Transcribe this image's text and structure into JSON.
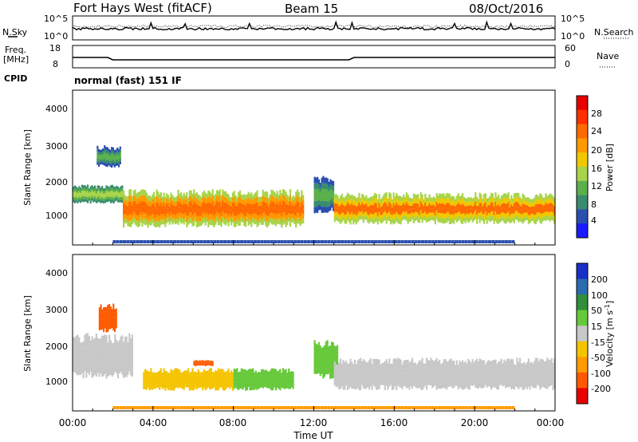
{
  "header": {
    "title": "Fort Hays West (fitACF)",
    "beam": "Beam 15",
    "date": "08/Oct/2016"
  },
  "noise_panel": {
    "left_label": "N.Sky",
    "right_label": "N.Search",
    "left_ticks": [
      "10^5",
      "10^0"
    ],
    "right_ticks": [
      "10^5",
      "10^0"
    ]
  },
  "freq_panel": {
    "left_label_1": "Freq.",
    "left_label_2": "[MHz]",
    "left_ticks": [
      "18",
      "8"
    ],
    "right_label": "Nave",
    "right_ticks": [
      "60",
      "0"
    ]
  },
  "cpid": {
    "label": "CPID",
    "text": "normal (fast) 151 IF"
  },
  "x_axis": {
    "label": "Time UT",
    "ticks": [
      "00:00",
      "04:00",
      "08:00",
      "12:00",
      "16:00",
      "20:00",
      "00:00"
    ]
  },
  "power_panel": {
    "ylabel": "Slant Range [km]",
    "yticks": [
      "4000",
      "3000",
      "2000",
      "1000"
    ],
    "colorbar_label": "Power [dB]",
    "colorbar_ticks": [
      "28",
      "24",
      "20",
      "16",
      "12",
      "8",
      "4"
    ],
    "colors": [
      "#1a1aff",
      "#2a4fb0",
      "#3a8c6e",
      "#5ab04a",
      "#a8d44a",
      "#f0c800",
      "#ff9a00",
      "#ff6a00",
      "#ff3000",
      "#e80000"
    ]
  },
  "velocity_panel": {
    "ylabel": "Slant Range [km]",
    "yticks": [
      "4000",
      "3000",
      "2000",
      "1000"
    ],
    "colorbar_label": "Velocity [m s",
    "colorbar_label_sup": "-1",
    "colorbar_label_end": "]",
    "colorbar_ticks": [
      "200",
      "100",
      "50",
      "15",
      "-15",
      "-50",
      "-100",
      "-200"
    ],
    "colors": [
      "#1a2fc8",
      "#2a6ab0",
      "#2f8f3a",
      "#66c93a",
      "#c8c8c8",
      "#f5c400",
      "#ff9a00",
      "#ff5a00",
      "#e80000"
    ]
  },
  "chart_data": {
    "type": "heatmap",
    "x_range": [
      "00:00",
      "24:00"
    ],
    "y_range_km": [
      180,
      4500
    ],
    "panels": [
      {
        "name": "Power [dB]",
        "scale": [
          0,
          30
        ],
        "features": [
          {
            "time_start_h": 0.0,
            "time_end_h": 2.5,
            "range_km": [
              1300,
              1900
            ],
            "power_db": 14
          },
          {
            "time_start_h": 1.2,
            "time_end_h": 2.4,
            "range_km": [
              2300,
              3000
            ],
            "power_db": 10
          },
          {
            "time_start_h": 2.5,
            "time_end_h": 11.5,
            "range_km": [
              600,
              1800
            ],
            "power_db": 24
          },
          {
            "time_start_h": 12.0,
            "time_end_h": 13.0,
            "range_km": [
              1000,
              2200
            ],
            "power_db": 10
          },
          {
            "time_start_h": 13.0,
            "time_end_h": 24.0,
            "range_km": [
              700,
              1700
            ],
            "power_db": 22
          }
        ]
      },
      {
        "name": "Velocity [m s^-1]",
        "scale": [
          -200,
          200
        ],
        "features": [
          {
            "time_start_h": 0.0,
            "time_end_h": 3.0,
            "range_km": [
              1000,
              2400
            ],
            "velocity": 0
          },
          {
            "time_start_h": 1.3,
            "time_end_h": 2.2,
            "range_km": [
              2300,
              3200
            ],
            "velocity": -200
          },
          {
            "time_start_h": 3.5,
            "time_end_h": 8.0,
            "range_km": [
              700,
              1400
            ],
            "velocity": -40
          },
          {
            "time_start_h": 6.0,
            "time_end_h": 7.0,
            "range_km": [
              1400,
              1600
            ],
            "velocity": -200
          },
          {
            "time_start_h": 8.0,
            "time_end_h": 11.0,
            "range_km": [
              700,
              1400
            ],
            "velocity": 30
          },
          {
            "time_start_h": 12.0,
            "time_end_h": 13.2,
            "range_km": [
              1000,
              2200
            ],
            "velocity": 40
          },
          {
            "time_start_h": 13.0,
            "time_end_h": 24.0,
            "range_km": [
              700,
              1700
            ],
            "velocity": 0
          }
        ]
      }
    ]
  }
}
